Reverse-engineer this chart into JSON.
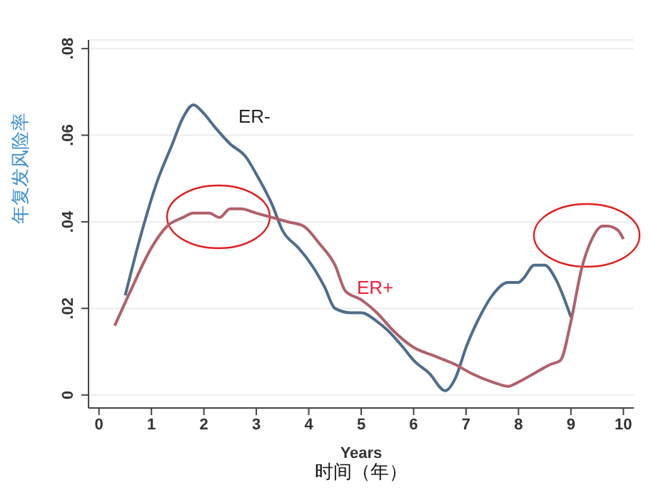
{
  "chart_data": {
    "type": "line",
    "ylabel": "年复发风险率",
    "xlabel": "Years",
    "annotations": [
      "时间（年）"
    ],
    "xlim": [
      -0.2,
      10.2
    ],
    "xticks": [
      0,
      1,
      2,
      3,
      4,
      5,
      6,
      7,
      8,
      9,
      10
    ],
    "ylim": [
      -0.003,
      0.082
    ],
    "yticks": [
      {
        "value": 0,
        "label": "0"
      },
      {
        "value": 0.02,
        "label": ".02"
      },
      {
        "value": 0.04,
        "label": ".04"
      },
      {
        "value": 0.06,
        "label": ".06"
      },
      {
        "value": 0.08,
        "label": ".08"
      }
    ],
    "grid": "y",
    "legend": false,
    "marker": "none",
    "line_style": "solid",
    "series": [
      {
        "name": "ER-",
        "color": "#4e6d8c",
        "x": [
          0.5,
          0.8,
          1.1,
          1.4,
          1.6,
          1.8,
          2.0,
          2.2,
          2.5,
          2.8,
          3.0,
          3.3,
          3.5,
          3.8,
          4.0,
          4.3,
          4.5,
          4.8,
          5.0,
          5.3,
          5.5,
          5.8,
          6.0,
          6.3,
          6.6,
          6.8,
          7.0,
          7.3,
          7.5,
          7.8,
          8.0,
          8.1,
          8.3,
          8.5,
          8.7,
          9.0
        ],
        "values": [
          0.023,
          0.037,
          0.049,
          0.058,
          0.064,
          0.067,
          0.065,
          0.062,
          0.058,
          0.055,
          0.051,
          0.044,
          0.038,
          0.034,
          0.031,
          0.025,
          0.02,
          0.019,
          0.019,
          0.017,
          0.015,
          0.011,
          0.008,
          0.005,
          0.001,
          0.004,
          0.011,
          0.019,
          0.023,
          0.026,
          0.026,
          0.027,
          0.03,
          0.03,
          0.027,
          0.018
        ]
      },
      {
        "name": "ER+",
        "color": "#b0606a",
        "x": [
          0.3,
          0.6,
          1.0,
          1.3,
          1.6,
          1.8,
          2.1,
          2.3,
          2.5,
          2.7,
          3.0,
          3.3,
          3.6,
          3.9,
          4.2,
          4.5,
          4.7,
          5.0,
          5.3,
          5.6,
          6.0,
          6.4,
          6.8,
          7.1,
          7.5,
          7.8,
          8.0,
          8.3,
          8.6,
          8.8,
          9.0,
          9.2,
          9.4,
          9.6,
          9.7,
          9.9,
          10.0
        ],
        "values": [
          0.016,
          0.024,
          0.034,
          0.039,
          0.041,
          0.042,
          0.042,
          0.041,
          0.043,
          0.043,
          0.042,
          0.041,
          0.04,
          0.039,
          0.035,
          0.03,
          0.024,
          0.022,
          0.019,
          0.015,
          0.011,
          0.009,
          0.007,
          0.005,
          0.003,
          0.002,
          0.003,
          0.005,
          0.007,
          0.008,
          0.017,
          0.029,
          0.036,
          0.039,
          0.039,
          0.038,
          0.036
        ]
      }
    ]
  }
}
